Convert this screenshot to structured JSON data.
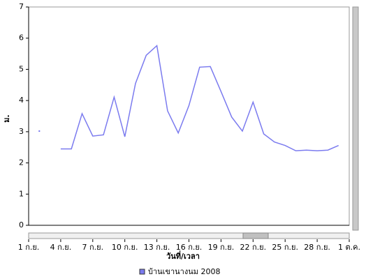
{
  "chart_data": {
    "type": "line",
    "y_label": "ม.",
    "x_label": "วันที่/เวลา",
    "x": [
      1,
      2,
      3,
      4,
      5,
      6,
      7,
      8,
      9,
      10,
      11,
      12,
      13,
      14,
      15,
      16,
      17,
      18,
      19,
      20,
      21,
      22,
      23,
      24,
      25,
      26,
      27,
      28,
      29
    ],
    "series": [
      {
        "name": "บ้านเขานางนม 2008",
        "color": "#7b7bef",
        "values": [
          3.02,
          null,
          2.45,
          2.45,
          3.58,
          2.86,
          2.9,
          4.11,
          2.84,
          4.55,
          5.45,
          5.76,
          3.67,
          2.96,
          3.84,
          5.07,
          5.09,
          4.29,
          3.47,
          3.02,
          3.95,
          2.93,
          2.67,
          2.56,
          2.39,
          2.41,
          2.39,
          2.41,
          2.56
        ]
      }
    ],
    "xlim": [
      0,
      30
    ],
    "xticks": [
      {
        "value": 0,
        "label": "1 ก.ย."
      },
      {
        "value": 3,
        "label": "4 ก.ย."
      },
      {
        "value": 6,
        "label": "7 ก.ย."
      },
      {
        "value": 9,
        "label": "10 ก.ย."
      },
      {
        "value": 12,
        "label": "13 ก.ย."
      },
      {
        "value": 15,
        "label": "16 ก.ย."
      },
      {
        "value": 18,
        "label": "19 ก.ย."
      },
      {
        "value": 21,
        "label": "22 ก.ย."
      },
      {
        "value": 24,
        "label": "25 ก.ย."
      },
      {
        "value": 27,
        "label": "28 ก.ย."
      },
      {
        "value": 30,
        "label": "1 ต.ค."
      }
    ],
    "ylim": [
      0,
      7
    ],
    "yticks": [
      0,
      1,
      2,
      3,
      4,
      5,
      6,
      7
    ]
  }
}
